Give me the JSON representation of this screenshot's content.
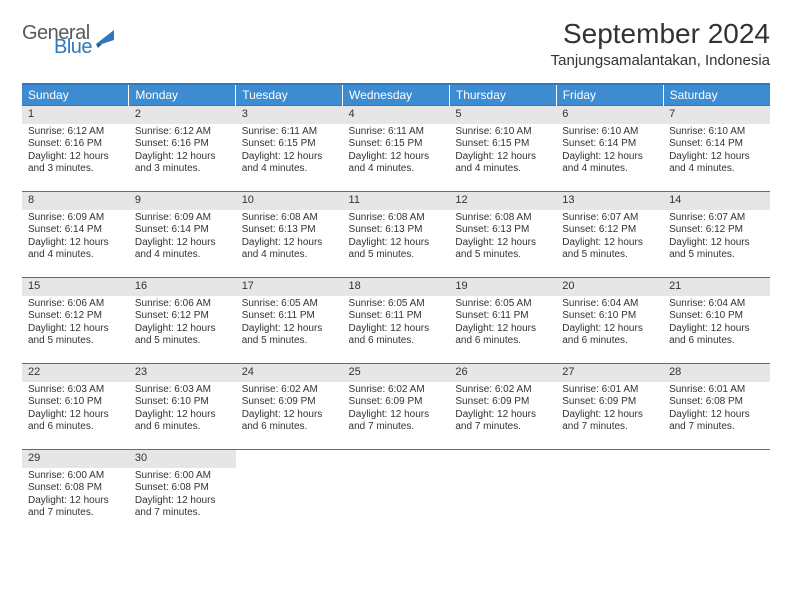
{
  "logo": {
    "general": "General",
    "blue": "Blue"
  },
  "title": "September 2024",
  "location": "Tanjungsamalantakan, Indonesia",
  "header_bg": "#3d8bd0",
  "border_color": "#2f78bd",
  "daynum_bg": "#e6e6e6",
  "dayNames": [
    "Sunday",
    "Monday",
    "Tuesday",
    "Wednesday",
    "Thursday",
    "Friday",
    "Saturday"
  ],
  "weeks": [
    [
      {
        "n": "1",
        "sr": "Sunrise: 6:12 AM",
        "ss": "Sunset: 6:16 PM",
        "dl1": "Daylight: 12 hours",
        "dl2": "and 3 minutes."
      },
      {
        "n": "2",
        "sr": "Sunrise: 6:12 AM",
        "ss": "Sunset: 6:16 PM",
        "dl1": "Daylight: 12 hours",
        "dl2": "and 3 minutes."
      },
      {
        "n": "3",
        "sr": "Sunrise: 6:11 AM",
        "ss": "Sunset: 6:15 PM",
        "dl1": "Daylight: 12 hours",
        "dl2": "and 4 minutes."
      },
      {
        "n": "4",
        "sr": "Sunrise: 6:11 AM",
        "ss": "Sunset: 6:15 PM",
        "dl1": "Daylight: 12 hours",
        "dl2": "and 4 minutes."
      },
      {
        "n": "5",
        "sr": "Sunrise: 6:10 AM",
        "ss": "Sunset: 6:15 PM",
        "dl1": "Daylight: 12 hours",
        "dl2": "and 4 minutes."
      },
      {
        "n": "6",
        "sr": "Sunrise: 6:10 AM",
        "ss": "Sunset: 6:14 PM",
        "dl1": "Daylight: 12 hours",
        "dl2": "and 4 minutes."
      },
      {
        "n": "7",
        "sr": "Sunrise: 6:10 AM",
        "ss": "Sunset: 6:14 PM",
        "dl1": "Daylight: 12 hours",
        "dl2": "and 4 minutes."
      }
    ],
    [
      {
        "n": "8",
        "sr": "Sunrise: 6:09 AM",
        "ss": "Sunset: 6:14 PM",
        "dl1": "Daylight: 12 hours",
        "dl2": "and 4 minutes."
      },
      {
        "n": "9",
        "sr": "Sunrise: 6:09 AM",
        "ss": "Sunset: 6:14 PM",
        "dl1": "Daylight: 12 hours",
        "dl2": "and 4 minutes."
      },
      {
        "n": "10",
        "sr": "Sunrise: 6:08 AM",
        "ss": "Sunset: 6:13 PM",
        "dl1": "Daylight: 12 hours",
        "dl2": "and 4 minutes."
      },
      {
        "n": "11",
        "sr": "Sunrise: 6:08 AM",
        "ss": "Sunset: 6:13 PM",
        "dl1": "Daylight: 12 hours",
        "dl2": "and 5 minutes."
      },
      {
        "n": "12",
        "sr": "Sunrise: 6:08 AM",
        "ss": "Sunset: 6:13 PM",
        "dl1": "Daylight: 12 hours",
        "dl2": "and 5 minutes."
      },
      {
        "n": "13",
        "sr": "Sunrise: 6:07 AM",
        "ss": "Sunset: 6:12 PM",
        "dl1": "Daylight: 12 hours",
        "dl2": "and 5 minutes."
      },
      {
        "n": "14",
        "sr": "Sunrise: 6:07 AM",
        "ss": "Sunset: 6:12 PM",
        "dl1": "Daylight: 12 hours",
        "dl2": "and 5 minutes."
      }
    ],
    [
      {
        "n": "15",
        "sr": "Sunrise: 6:06 AM",
        "ss": "Sunset: 6:12 PM",
        "dl1": "Daylight: 12 hours",
        "dl2": "and 5 minutes."
      },
      {
        "n": "16",
        "sr": "Sunrise: 6:06 AM",
        "ss": "Sunset: 6:12 PM",
        "dl1": "Daylight: 12 hours",
        "dl2": "and 5 minutes."
      },
      {
        "n": "17",
        "sr": "Sunrise: 6:05 AM",
        "ss": "Sunset: 6:11 PM",
        "dl1": "Daylight: 12 hours",
        "dl2": "and 5 minutes."
      },
      {
        "n": "18",
        "sr": "Sunrise: 6:05 AM",
        "ss": "Sunset: 6:11 PM",
        "dl1": "Daylight: 12 hours",
        "dl2": "and 6 minutes."
      },
      {
        "n": "19",
        "sr": "Sunrise: 6:05 AM",
        "ss": "Sunset: 6:11 PM",
        "dl1": "Daylight: 12 hours",
        "dl2": "and 6 minutes."
      },
      {
        "n": "20",
        "sr": "Sunrise: 6:04 AM",
        "ss": "Sunset: 6:10 PM",
        "dl1": "Daylight: 12 hours",
        "dl2": "and 6 minutes."
      },
      {
        "n": "21",
        "sr": "Sunrise: 6:04 AM",
        "ss": "Sunset: 6:10 PM",
        "dl1": "Daylight: 12 hours",
        "dl2": "and 6 minutes."
      }
    ],
    [
      {
        "n": "22",
        "sr": "Sunrise: 6:03 AM",
        "ss": "Sunset: 6:10 PM",
        "dl1": "Daylight: 12 hours",
        "dl2": "and 6 minutes."
      },
      {
        "n": "23",
        "sr": "Sunrise: 6:03 AM",
        "ss": "Sunset: 6:10 PM",
        "dl1": "Daylight: 12 hours",
        "dl2": "and 6 minutes."
      },
      {
        "n": "24",
        "sr": "Sunrise: 6:02 AM",
        "ss": "Sunset: 6:09 PM",
        "dl1": "Daylight: 12 hours",
        "dl2": "and 6 minutes."
      },
      {
        "n": "25",
        "sr": "Sunrise: 6:02 AM",
        "ss": "Sunset: 6:09 PM",
        "dl1": "Daylight: 12 hours",
        "dl2": "and 7 minutes."
      },
      {
        "n": "26",
        "sr": "Sunrise: 6:02 AM",
        "ss": "Sunset: 6:09 PM",
        "dl1": "Daylight: 12 hours",
        "dl2": "and 7 minutes."
      },
      {
        "n": "27",
        "sr": "Sunrise: 6:01 AM",
        "ss": "Sunset: 6:09 PM",
        "dl1": "Daylight: 12 hours",
        "dl2": "and 7 minutes."
      },
      {
        "n": "28",
        "sr": "Sunrise: 6:01 AM",
        "ss": "Sunset: 6:08 PM",
        "dl1": "Daylight: 12 hours",
        "dl2": "and 7 minutes."
      }
    ],
    [
      {
        "n": "29",
        "sr": "Sunrise: 6:00 AM",
        "ss": "Sunset: 6:08 PM",
        "dl1": "Daylight: 12 hours",
        "dl2": "and 7 minutes."
      },
      {
        "n": "30",
        "sr": "Sunrise: 6:00 AM",
        "ss": "Sunset: 6:08 PM",
        "dl1": "Daylight: 12 hours",
        "dl2": "and 7 minutes."
      },
      {
        "empty": true
      },
      {
        "empty": true
      },
      {
        "empty": true
      },
      {
        "empty": true
      },
      {
        "empty": true
      }
    ]
  ]
}
